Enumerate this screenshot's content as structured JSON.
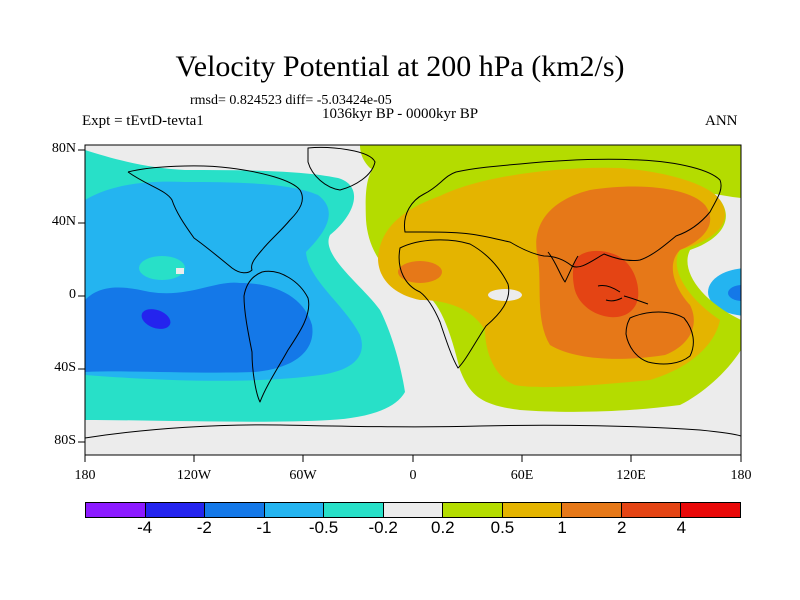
{
  "title": "Velocity Potential at 200 hPa (km2/s)",
  "stats_line": "rmsd= 0.824523  diff= -5.03424e-05",
  "period": "1036kyr BP - 0000kyr BP",
  "experiment": "Expt = tEvtD-tevta1",
  "season": "ANN",
  "lat_labels": [
    "80N",
    "40N",
    "0",
    "40S",
    "80S"
  ],
  "lon_labels": [
    "180",
    "120W",
    "60W",
    "0",
    "60E",
    "120E",
    "180"
  ],
  "colorbar": {
    "labels": [
      "-4",
      "-2",
      "-1",
      "-0.5",
      "-0.2",
      "0.2",
      "0.5",
      "1",
      "2",
      "4"
    ],
    "colors": [
      "#8c1aff",
      "#2424ee",
      "#1478e8",
      "#24b4f0",
      "#28e0c8",
      "#ececec",
      "#b4dc00",
      "#e4b400",
      "#e67818",
      "#e44414",
      "#e80808"
    ]
  }
}
